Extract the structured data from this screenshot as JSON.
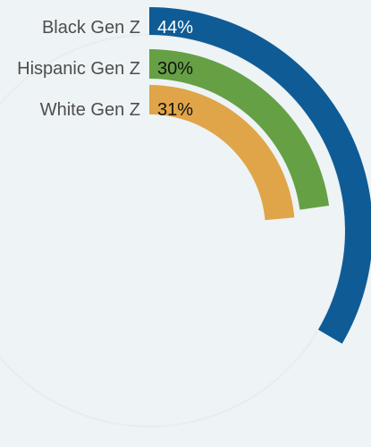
{
  "chart_data": {
    "type": "radial-bar",
    "categories": [
      "Black Gen Z",
      "Hispanic Gen Z",
      "White Gen Z"
    ],
    "values": [
      44,
      30,
      31
    ],
    "value_labels": [
      "44%",
      "30%",
      "31%"
    ],
    "unit": "%",
    "max": 100,
    "colors": [
      "#0f5b96",
      "#66a045",
      "#e0a548"
    ],
    "label_colors": [
      "#ffffff",
      "#111111",
      "#111111"
    ],
    "background": "#eef3f5"
  }
}
